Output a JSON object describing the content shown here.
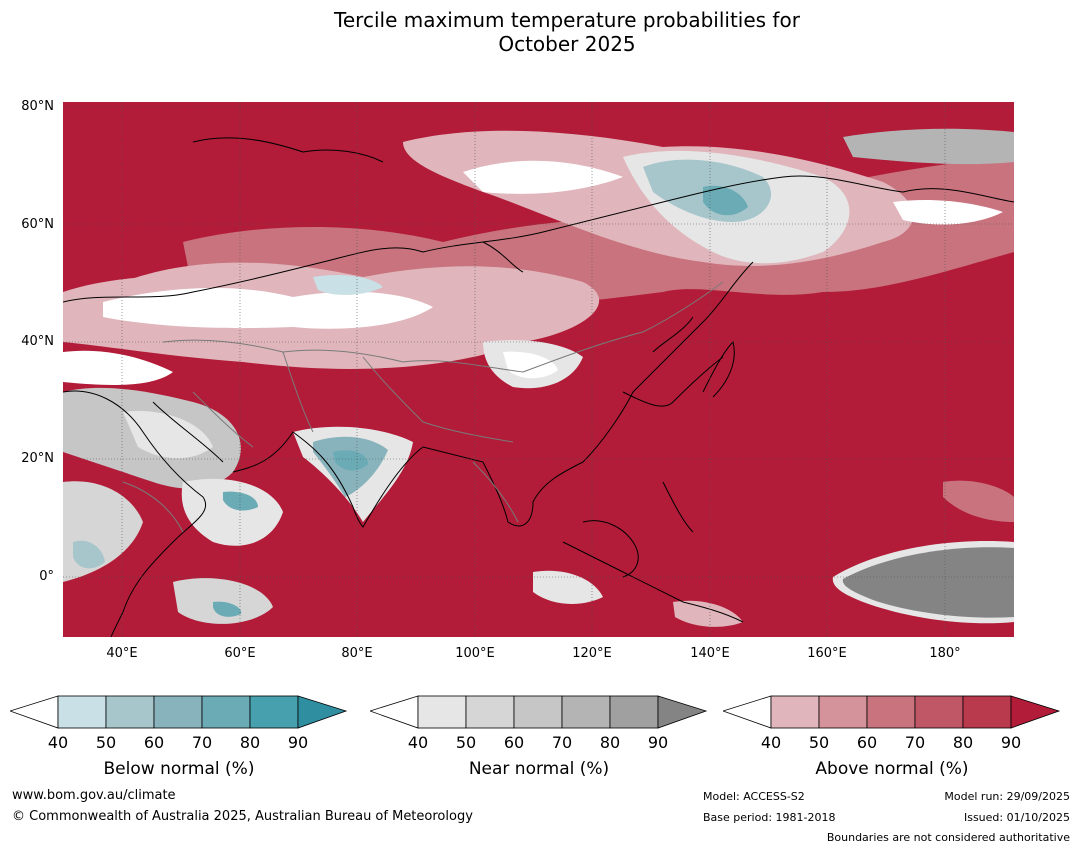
{
  "title": {
    "line1": "Tercile maximum temperature probabilities for",
    "line2": "October 2025"
  },
  "axes": {
    "lat_labels": [
      "80°N",
      "60°N",
      "40°N",
      "20°N",
      "0°"
    ],
    "lon_labels": [
      "40°E",
      "60°E",
      "80°E",
      "100°E",
      "120°E",
      "140°E",
      "160°E",
      "180°"
    ]
  },
  "colorbars": [
    {
      "title": "Below normal (%)",
      "ticks": [
        "40",
        "50",
        "60",
        "70",
        "80",
        "90"
      ],
      "colors": [
        "#ffffff",
        "#c8e0e6",
        "#a6c6cb",
        "#89b3bc",
        "#6aabb5",
        "#47a0ae",
        "#2f8fa0"
      ]
    },
    {
      "title": "Near normal (%)",
      "ticks": [
        "40",
        "50",
        "60",
        "70",
        "80",
        "90"
      ],
      "colors": [
        "#ffffff",
        "#e6e6e6",
        "#d6d6d6",
        "#c6c6c6",
        "#b4b4b4",
        "#a0a0a0",
        "#848484"
      ]
    },
    {
      "title": "Above normal (%)",
      "ticks": [
        "40",
        "50",
        "60",
        "70",
        "80",
        "90"
      ],
      "colors": [
        "#ffffff",
        "#e0b6bc",
        "#d4939a",
        "#c8737d",
        "#c05767",
        "#b93a4d",
        "#b21c38"
      ]
    }
  ],
  "footer": {
    "website": "www.bom.gov.au/climate",
    "copyright": "© Commonwealth of Australia 2025, Australian Bureau of Meteorology",
    "model": "Model: ACCESS-S2",
    "base_period": "Base period: 1981-2018",
    "model_run": "Model run: 29/09/2025",
    "issued": "Issued: 01/10/2025",
    "disclaimer": "Boundaries are not considered authoritative"
  }
}
